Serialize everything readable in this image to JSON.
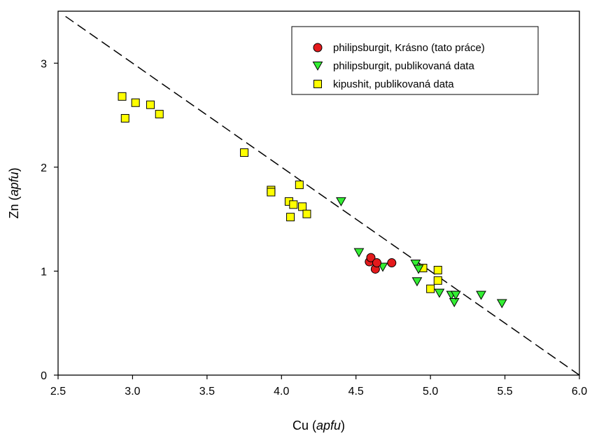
{
  "chart_data": {
    "type": "scatter",
    "title": "",
    "xlabel": {
      "main": "Cu (",
      "italic": "apfu",
      "end": ")"
    },
    "ylabel": {
      "main": "Zn (",
      "italic": "apfu",
      "end": ")"
    },
    "xlim": [
      2.5,
      6.0
    ],
    "ylim": [
      0,
      3.5
    ],
    "xticks": [
      2.5,
      3.0,
      3.5,
      4.0,
      4.5,
      5.0,
      5.5,
      6.0
    ],
    "xtick_labels": [
      "2.5",
      "3.0",
      "3.5",
      "4.0",
      "4.5",
      "5.0",
      "5.5",
      "6.0"
    ],
    "yticks": [
      0,
      1,
      2,
      3
    ],
    "ytick_labels": [
      "0",
      "1",
      "2",
      "3"
    ],
    "grid": false,
    "legend_position": "top-right",
    "reference_line": {
      "style": "dashed",
      "points": [
        [
          2.55,
          3.45
        ],
        [
          6.0,
          0.0
        ]
      ]
    },
    "series": [
      {
        "name": "philipsburgit, Krásno (tato práce)",
        "marker": "circle",
        "color": "#e41a1c",
        "points": [
          [
            4.59,
            1.09
          ],
          [
            4.6,
            1.13
          ],
          [
            4.63,
            1.02
          ],
          [
            4.64,
            1.08
          ],
          [
            4.74,
            1.08
          ]
        ]
      },
      {
        "name": "philipsburgit, publikovaná data",
        "marker": "triangle-down",
        "color": "#33ee33",
        "points": [
          [
            4.4,
            1.67
          ],
          [
            4.52,
            1.18
          ],
          [
            4.68,
            1.04
          ],
          [
            4.9,
            1.07
          ],
          [
            4.91,
            0.9
          ],
          [
            4.92,
            1.02
          ],
          [
            5.06,
            0.79
          ],
          [
            5.14,
            0.77
          ],
          [
            5.16,
            0.7
          ],
          [
            5.17,
            0.77
          ],
          [
            5.34,
            0.77
          ],
          [
            5.48,
            0.69
          ]
        ]
      },
      {
        "name": "kipushit, publikovaná data",
        "marker": "square",
        "color": "#ffff00",
        "points": [
          [
            2.93,
            2.68
          ],
          [
            2.95,
            2.47
          ],
          [
            3.02,
            2.62
          ],
          [
            3.12,
            2.6
          ],
          [
            3.18,
            2.51
          ],
          [
            3.75,
            2.14
          ],
          [
            3.93,
            1.78
          ],
          [
            3.93,
            1.76
          ],
          [
            4.05,
            1.67
          ],
          [
            4.06,
            1.52
          ],
          [
            4.08,
            1.64
          ],
          [
            4.12,
            1.83
          ],
          [
            4.14,
            1.62
          ],
          [
            4.17,
            1.55
          ],
          [
            4.95,
            1.03
          ],
          [
            5.0,
            0.83
          ],
          [
            5.05,
            1.01
          ],
          [
            5.05,
            0.91
          ]
        ]
      }
    ]
  }
}
